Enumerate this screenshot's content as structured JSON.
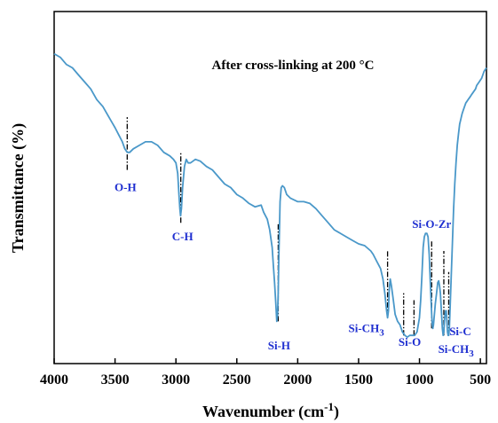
{
  "chart_data": {
    "type": "line",
    "title": "",
    "annotation_title": "After cross-linking at 200 °C",
    "xlabel": "Wavenumber (cm",
    "xlabel_sup": "-1",
    "xlabel_close": ")",
    "ylabel": "Transmittance (%)",
    "xlim": [
      4000,
      450
    ],
    "x_reversed": true,
    "ylim": [
      0,
      100
    ],
    "y_ticks_shown": false,
    "x_ticks": [
      4000,
      3500,
      3000,
      2500,
      2000,
      1500,
      1000,
      500
    ],
    "x_tick_labels": [
      "4000",
      "3500",
      "3000",
      "2500",
      "2000",
      "1500",
      "1000",
      "500"
    ],
    "line_color": "#4a98c9",
    "label_color": "#1f2fd0",
    "series": [
      {
        "x": [
          4000,
          3950,
          3900,
          3850,
          3800,
          3750,
          3700,
          3650,
          3600,
          3550,
          3500,
          3470,
          3440,
          3420,
          3400,
          3380,
          3350,
          3300,
          3250,
          3200,
          3150,
          3100,
          3050,
          3020,
          3000,
          2985,
          2975,
          2968,
          2962,
          2955,
          2945,
          2930,
          2915,
          2900,
          2880,
          2860,
          2840,
          2800,
          2750,
          2700,
          2650,
          2600,
          2550,
          2500,
          2450,
          2400,
          2350,
          2300,
          2280,
          2250,
          2230,
          2210,
          2200,
          2190,
          2180,
          2172,
          2165,
          2160,
          2155,
          2145,
          2135,
          2125,
          2110,
          2090,
          2060,
          2000,
          1950,
          1900,
          1850,
          1800,
          1750,
          1700,
          1650,
          1600,
          1550,
          1500,
          1450,
          1400,
          1380,
          1350,
          1320,
          1300,
          1285,
          1270,
          1262,
          1255,
          1248,
          1240,
          1230,
          1215,
          1200,
          1180,
          1160,
          1140,
          1120,
          1100,
          1080,
          1060,
          1040,
          1020,
          1000,
          990,
          980,
          970,
          960,
          950,
          940,
          930,
          920,
          910,
          900,
          895,
          890,
          885,
          880,
          870,
          860,
          850,
          842,
          835,
          828,
          820,
          812,
          806,
          800,
          795,
          790,
          785,
          780,
          775,
          770,
          765,
          760,
          755,
          750,
          740,
          730,
          720,
          710,
          700,
          690,
          680,
          670,
          660,
          650,
          640,
          630,
          620,
          610,
          600,
          590,
          580,
          570,
          560,
          550,
          540,
          530,
          520,
          510,
          500,
          490,
          480,
          470,
          460,
          450
        ],
        "y": [
          88,
          87,
          85,
          84,
          82,
          80,
          78,
          75,
          73,
          70,
          67,
          65,
          63,
          61,
          60,
          60,
          61,
          62,
          63,
          63,
          62,
          60,
          59,
          58,
          57,
          54,
          48,
          44,
          42,
          44,
          50,
          56,
          58,
          57,
          57,
          57.5,
          58,
          57.5,
          56,
          55,
          53,
          51,
          50,
          48,
          47,
          45.5,
          44.5,
          45,
          43,
          41,
          38,
          33,
          28,
          23,
          17,
          12,
          14,
          20,
          30,
          46,
          50,
          50.5,
          50,
          48,
          47,
          46,
          46,
          45.5,
          44,
          42,
          40,
          38,
          37,
          36,
          35,
          34,
          33.5,
          32,
          31,
          29,
          27,
          24,
          20,
          15,
          13,
          15,
          21,
          24,
          22,
          18,
          14,
          12,
          11,
          9,
          8,
          7.5,
          8,
          8,
          8,
          9,
          13,
          18,
          25,
          33,
          36,
          37,
          37,
          36,
          31,
          22,
          14,
          11,
          10,
          11,
          13,
          17,
          20,
          23,
          23.5,
          22,
          20,
          15,
          10,
          8,
          9,
          12,
          14,
          15,
          15,
          12,
          9,
          8,
          8,
          10,
          14,
          24,
          34,
          44,
          51,
          57,
          62,
          65,
          68,
          69.5,
          71,
          72,
          73,
          74,
          74.5,
          75,
          75.5,
          76,
          76.5,
          77,
          77.5,
          78,
          79,
          79.5,
          80,
          80.5,
          81,
          82,
          83,
          83.5,
          84
        ]
      }
    ],
    "peak_labels": [
      {
        "text": "O-H",
        "wavenumber": 3400,
        "position": "below"
      },
      {
        "text": "C-H",
        "wavenumber": 2960,
        "position": "below"
      },
      {
        "text": "Si-H",
        "wavenumber": 2160,
        "position": "below"
      },
      {
        "text": "Si-CH",
        "sub": "3",
        "wavenumber": 1262,
        "position": "below"
      },
      {
        "text": "Si-O",
        "wavenumber": 1080,
        "position": "below"
      },
      {
        "text": "Si-O-Zr",
        "wavenumber": 900,
        "position": "above"
      },
      {
        "text": "Si-C",
        "wavenumber": 760,
        "position": "right"
      },
      {
        "text": "Si-CH",
        "sub": "3",
        "wavenumber": 795,
        "position": "below"
      }
    ],
    "peak_markers": [
      3400,
      2960,
      2160,
      1262,
      1130,
      1045,
      900,
      800,
      760
    ]
  }
}
